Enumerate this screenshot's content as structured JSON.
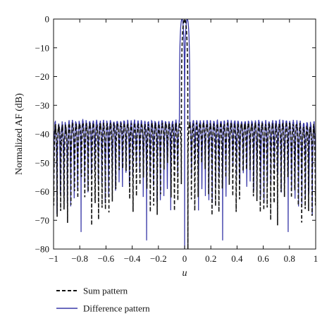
{
  "chart_data": {
    "type": "line",
    "title": "",
    "xlabel": "u",
    "ylabel": "Normalized AF (dB)",
    "xlim": [
      -1,
      1
    ],
    "ylim": [
      -80,
      0
    ],
    "x_ticks": [
      -1,
      -0.8,
      -0.6,
      -0.4,
      -0.2,
      0,
      0.2,
      0.4,
      0.6,
      0.8,
      1
    ],
    "x_tick_labels": [
      "−1",
      "−0.8",
      "−0.6",
      "−0.4",
      "−0.2",
      "0",
      "0.2",
      "0.4",
      "0.6",
      "0.8",
      "1"
    ],
    "y_ticks": [
      0,
      -10,
      -20,
      -30,
      -40,
      -50,
      -60,
      -70,
      -80
    ],
    "y_tick_labels": [
      "0",
      "−10",
      "−20",
      "−30",
      "−40",
      "−50",
      "−60",
      "−70",
      "−80"
    ],
    "grid": false,
    "legend_position": "below",
    "series": [
      {
        "name": "Sum pattern",
        "color": "#111111",
        "dash": "dashed",
        "main_lobe": {
          "peak_u": 0,
          "peak_db": 0,
          "null_width_u": 0.025
        },
        "sidelobe_level_db": -36,
        "null_floor_db": [
          -80,
          -55
        ],
        "approx_sidelobe_count_per_side": 38
      },
      {
        "name": "Difference pattern",
        "color": "#3a3aa8",
        "dash": "solid",
        "main_lobe": {
          "peak_u": [
            -0.006,
            0.006
          ],
          "peak_db": [
            0,
            0
          ],
          "central_null_u": 0,
          "null_width_u": 0.04
        },
        "sidelobe_level_db": -35,
        "null_floor_db": [
          -78,
          -55
        ],
        "approx_sidelobe_count_per_side": 38
      }
    ]
  }
}
